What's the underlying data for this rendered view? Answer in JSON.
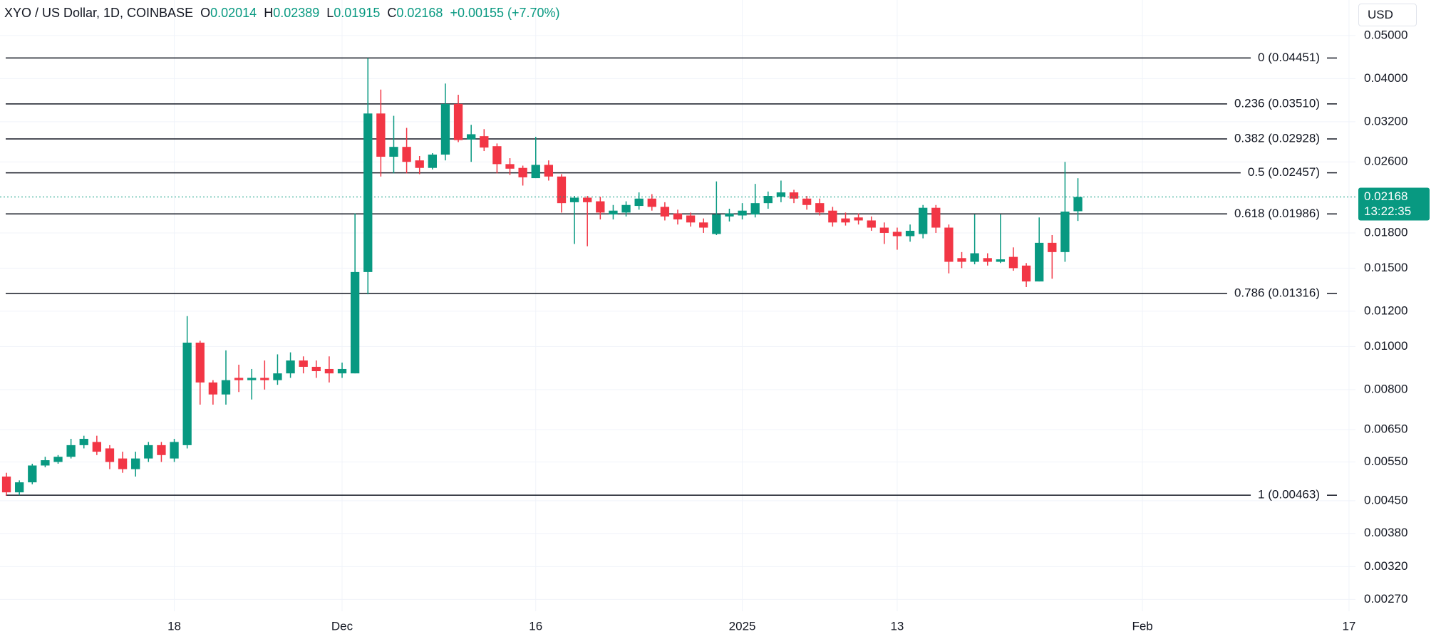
{
  "header": {
    "symbol": "XYO / US Dollar, 1D, COINBASE",
    "open_label": "O",
    "open": "0.02014",
    "high_label": "H",
    "high": "0.02389",
    "low_label": "L",
    "low": "0.01915",
    "close_label": "C",
    "close": "0.02168",
    "change": "+0.00155 (+7.70%)"
  },
  "currency": "USD",
  "chart_data": {
    "type": "candlestick",
    "log_scale": true,
    "grid": true,
    "up_color": "#089981",
    "down_color": "#f23645",
    "categories": [
      null,
      null,
      null,
      null,
      null,
      null,
      null,
      null,
      null,
      null,
      null,
      null,
      null,
      "18",
      null,
      null,
      null,
      null,
      null,
      null,
      null,
      null,
      null,
      null,
      null,
      null,
      "Dec",
      null,
      null,
      null,
      null,
      null,
      null,
      null,
      null,
      null,
      null,
      null,
      null,
      null,
      null,
      "16",
      null,
      null,
      null,
      null,
      null,
      null,
      null,
      null,
      null,
      null,
      null,
      null,
      null,
      null,
      null,
      "2025",
      null,
      null,
      null,
      null,
      null,
      null,
      null,
      null,
      null,
      null,
      null,
      "13",
      null,
      null,
      null,
      null,
      null,
      null,
      null,
      null,
      null,
      null,
      null,
      null,
      null,
      null,
      null,
      null,
      null,
      null,
      "Feb",
      null,
      null,
      null,
      null,
      null,
      null,
      null,
      null,
      null,
      null,
      null,
      null,
      null,
      null,
      null,
      "17"
    ],
    "open": [
      0.0051,
      0.0047,
      0.00495,
      0.0054,
      0.0055,
      0.00565,
      0.006,
      0.0061,
      0.0059,
      0.0056,
      0.0053,
      0.0056,
      0.006,
      0.0056,
      0.006,
      0.0102,
      0.0083,
      0.0078,
      0.0085,
      0.0084,
      0.0085,
      0.0084,
      0.0087,
      0.0093,
      0.009,
      0.0089,
      0.0087,
      0.0087,
      0.0147,
      0.0334,
      0.0267,
      0.0281,
      0.0262,
      0.0252,
      0.027,
      0.0351,
      0.0292,
      0.0297,
      0.0282,
      0.0257,
      0.0252,
      0.0239,
      0.0256,
      0.0241,
      0.0211,
      0.0216,
      0.0212,
      0.0198,
      0.02,
      0.0207,
      0.0215,
      0.0206,
      0.0199,
      0.0197,
      0.019,
      0.0179,
      0.0196,
      0.0197,
      0.0198,
      0.021,
      0.0217,
      0.0222,
      0.0215,
      0.021,
      0.0202,
      0.0194,
      0.0195,
      0.0192,
      0.0185,
      0.0181,
      0.0177,
      0.0179,
      0.0205,
      0.0185,
      0.0158,
      0.0155,
      0.0158,
      0.0155,
      0.0159,
      0.0152,
      0.014,
      0.0171,
      0.0163,
      0.02014,
      null,
      null,
      null,
      null,
      null,
      null,
      null,
      null,
      null,
      null,
      null,
      null,
      null,
      null,
      null,
      null,
      null,
      null,
      null,
      null,
      null
    ],
    "high": [
      0.0052,
      0.005,
      0.00545,
      0.00565,
      0.0057,
      0.0062,
      0.0063,
      0.0063,
      0.006,
      0.0058,
      0.0058,
      0.0061,
      0.0061,
      0.0062,
      0.0117,
      0.0103,
      0.0084,
      0.0098,
      0.0091,
      0.0089,
      0.0093,
      0.0096,
      0.0097,
      0.0095,
      0.0093,
      0.0095,
      0.0092,
      0.0199,
      0.0445,
      0.0378,
      0.033,
      0.031,
      0.0268,
      0.0272,
      0.039,
      0.0368,
      0.0315,
      0.0308,
      0.0286,
      0.0265,
      0.0255,
      0.0296,
      0.0262,
      0.0244,
      0.0218,
      0.0218,
      0.0217,
      0.0208,
      0.0212,
      0.0222,
      0.022,
      0.0211,
      0.0203,
      0.02,
      0.0194,
      0.0235,
      0.0204,
      0.021,
      0.0232,
      0.0223,
      0.0236,
      0.0225,
      0.0218,
      0.0215,
      0.0206,
      0.02,
      0.0199,
      0.0196,
      0.019,
      0.0185,
      0.0188,
      0.0208,
      0.0208,
      0.0188,
      0.0163,
      0.0198,
      0.0162,
      0.0198,
      0.0167,
      0.0154,
      0.0195,
      0.0178,
      0.026,
      0.02389,
      null,
      null,
      null,
      null,
      null,
      null,
      null,
      null,
      null,
      null,
      null,
      null,
      null,
      null,
      null,
      null,
      null,
      null,
      null,
      null,
      null
    ],
    "low": [
      0.00462,
      0.00463,
      0.0049,
      0.00535,
      0.00545,
      0.0056,
      0.0059,
      0.0057,
      0.0053,
      0.0052,
      0.0051,
      0.0055,
      0.0055,
      0.0055,
      0.0059,
      0.0074,
      0.0074,
      0.0074,
      0.0079,
      0.0076,
      0.008,
      0.0082,
      0.0085,
      0.0087,
      0.0085,
      0.0083,
      0.0085,
      0.0087,
      0.0131,
      0.0241,
      0.0245,
      0.0245,
      0.0244,
      0.025,
      0.0262,
      0.0288,
      0.026,
      0.0275,
      0.0245,
      0.0243,
      0.023,
      0.0239,
      0.0236,
      0.02,
      0.017,
      0.0168,
      0.0193,
      0.0193,
      0.0196,
      0.0203,
      0.0202,
      0.0192,
      0.0188,
      0.0186,
      0.018,
      0.0178,
      0.0191,
      0.0193,
      0.0195,
      0.0204,
      0.0211,
      0.021,
      0.0203,
      0.0197,
      0.0186,
      0.0187,
      0.0188,
      0.0182,
      0.017,
      0.0165,
      0.0172,
      0.0175,
      0.018,
      0.0146,
      0.015,
      0.0153,
      0.0152,
      0.0154,
      0.0148,
      0.0136,
      0.014,
      0.0142,
      0.0155,
      0.01915,
      null,
      null,
      null,
      null,
      null,
      null,
      null,
      null,
      null,
      null,
      null,
      null,
      null,
      null,
      null,
      null,
      null,
      null,
      null,
      null,
      null
    ],
    "close": [
      0.0047,
      0.00495,
      0.0054,
      0.00555,
      0.00565,
      0.006,
      0.0062,
      0.0058,
      0.0055,
      0.0053,
      0.0056,
      0.006,
      0.0057,
      0.0061,
      0.0102,
      0.0083,
      0.0078,
      0.0084,
      0.0084,
      0.0085,
      0.0084,
      0.0087,
      0.0093,
      0.009,
      0.0088,
      0.0087,
      0.0089,
      0.0147,
      0.0334,
      0.0267,
      0.0281,
      0.026,
      0.0252,
      0.027,
      0.0351,
      0.0291,
      0.03,
      0.028,
      0.0257,
      0.0251,
      0.024,
      0.0256,
      0.0241,
      0.021,
      0.0216,
      0.0211,
      0.02,
      0.0202,
      0.0208,
      0.0215,
      0.0206,
      0.0196,
      0.0193,
      0.019,
      0.0185,
      0.0198,
      0.0199,
      0.0202,
      0.021,
      0.0218,
      0.0222,
      0.0215,
      0.0208,
      0.02,
      0.019,
      0.019,
      0.0192,
      0.0185,
      0.018,
      0.0177,
      0.0182,
      0.0205,
      0.0185,
      0.0155,
      0.0155,
      0.0162,
      0.0155,
      0.0157,
      0.015,
      0.014,
      0.0171,
      0.0163,
      0.0201,
      0.02168,
      null,
      null,
      null,
      null,
      null,
      null,
      null,
      null,
      null,
      null,
      null,
      null,
      null,
      null,
      null,
      null,
      null,
      null,
      null,
      null,
      null
    ],
    "ylim": [
      0.00254,
      0.0601
    ],
    "yticks": [
      {
        "value": 0.05,
        "label": "0.05000"
      },
      {
        "value": 0.04,
        "label": "0.04000"
      },
      {
        "value": 0.032,
        "label": "0.03200"
      },
      {
        "value": 0.026,
        "label": "0.02600"
      },
      {
        "value": 0.018,
        "label": "0.01800"
      },
      {
        "value": 0.015,
        "label": "0.01500"
      },
      {
        "value": 0.012,
        "label": "0.01200"
      },
      {
        "value": 0.01,
        "label": "0.01000"
      },
      {
        "value": 0.008,
        "label": "0.00800"
      },
      {
        "value": 0.0065,
        "label": "0.00650"
      },
      {
        "value": 0.0055,
        "label": "0.00550"
      },
      {
        "value": 0.0045,
        "label": "0.00450"
      },
      {
        "value": 0.0038,
        "label": "0.00380"
      },
      {
        "value": 0.0032,
        "label": "0.00320"
      },
      {
        "value": 0.0027,
        "label": "0.00270"
      }
    ],
    "fib_levels": [
      {
        "value": 0.04451,
        "label": "0 (0.04451)"
      },
      {
        "value": 0.0351,
        "label": "0.236 (0.03510)"
      },
      {
        "value": 0.02928,
        "label": "0.382 (0.02928)"
      },
      {
        "value": 0.02457,
        "label": "0.5 (0.02457)"
      },
      {
        "value": 0.01986,
        "label": "0.618 (0.01986)"
      },
      {
        "value": 0.01316,
        "label": "0.786 (0.01316)"
      },
      {
        "value": 0.00463,
        "label": "1 (0.00463)"
      }
    ],
    "last_price": 0.02168,
    "countdown": "13:22:35"
  }
}
